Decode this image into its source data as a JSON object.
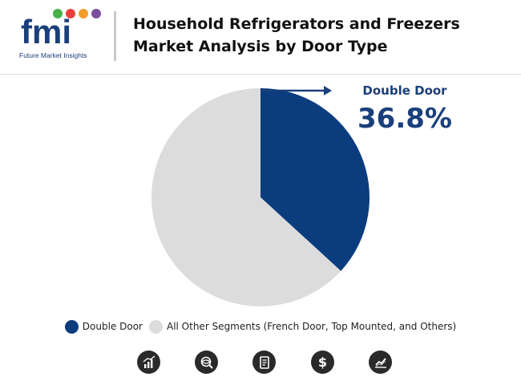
{
  "brand": {
    "logo_text": "fmi",
    "logo_subtitle": "Future Market Insights",
    "colors": {
      "primary": "#1a3f7b",
      "dot_red": "#e8413c",
      "dot_orange": "#f39b2b",
      "dot_green": "#48b14a",
      "dot_purple": "#7b4ea0"
    }
  },
  "title": {
    "line1": "Household Refrigerators and Freezers",
    "line2": "Market Analysis by Door Type"
  },
  "callout": {
    "label": "Double Door",
    "value": "36.8%"
  },
  "chart_data": {
    "type": "pie",
    "slices": [
      {
        "label": "Double Door",
        "value": 36.8,
        "color": "#0b3d7e"
      },
      {
        "label": "All Other Segments (French Door, Top Mounted, and Others)",
        "value": 63.2,
        "color": "#dcdcdc"
      }
    ],
    "start_angle": "12 o'clock",
    "direction": "clockwise",
    "legend_position": "bottom"
  },
  "legend": [
    {
      "label": "Double Door",
      "color": "#0b3d7e"
    },
    {
      "label": "All Other Segments (French Door, Top Mounted, and Others)",
      "color": "#dcdcdc"
    }
  ],
  "footer_icons": [
    "bar-chart-icon",
    "globe-search-icon",
    "document-icon",
    "dollar-icon",
    "trend-chart-icon"
  ]
}
